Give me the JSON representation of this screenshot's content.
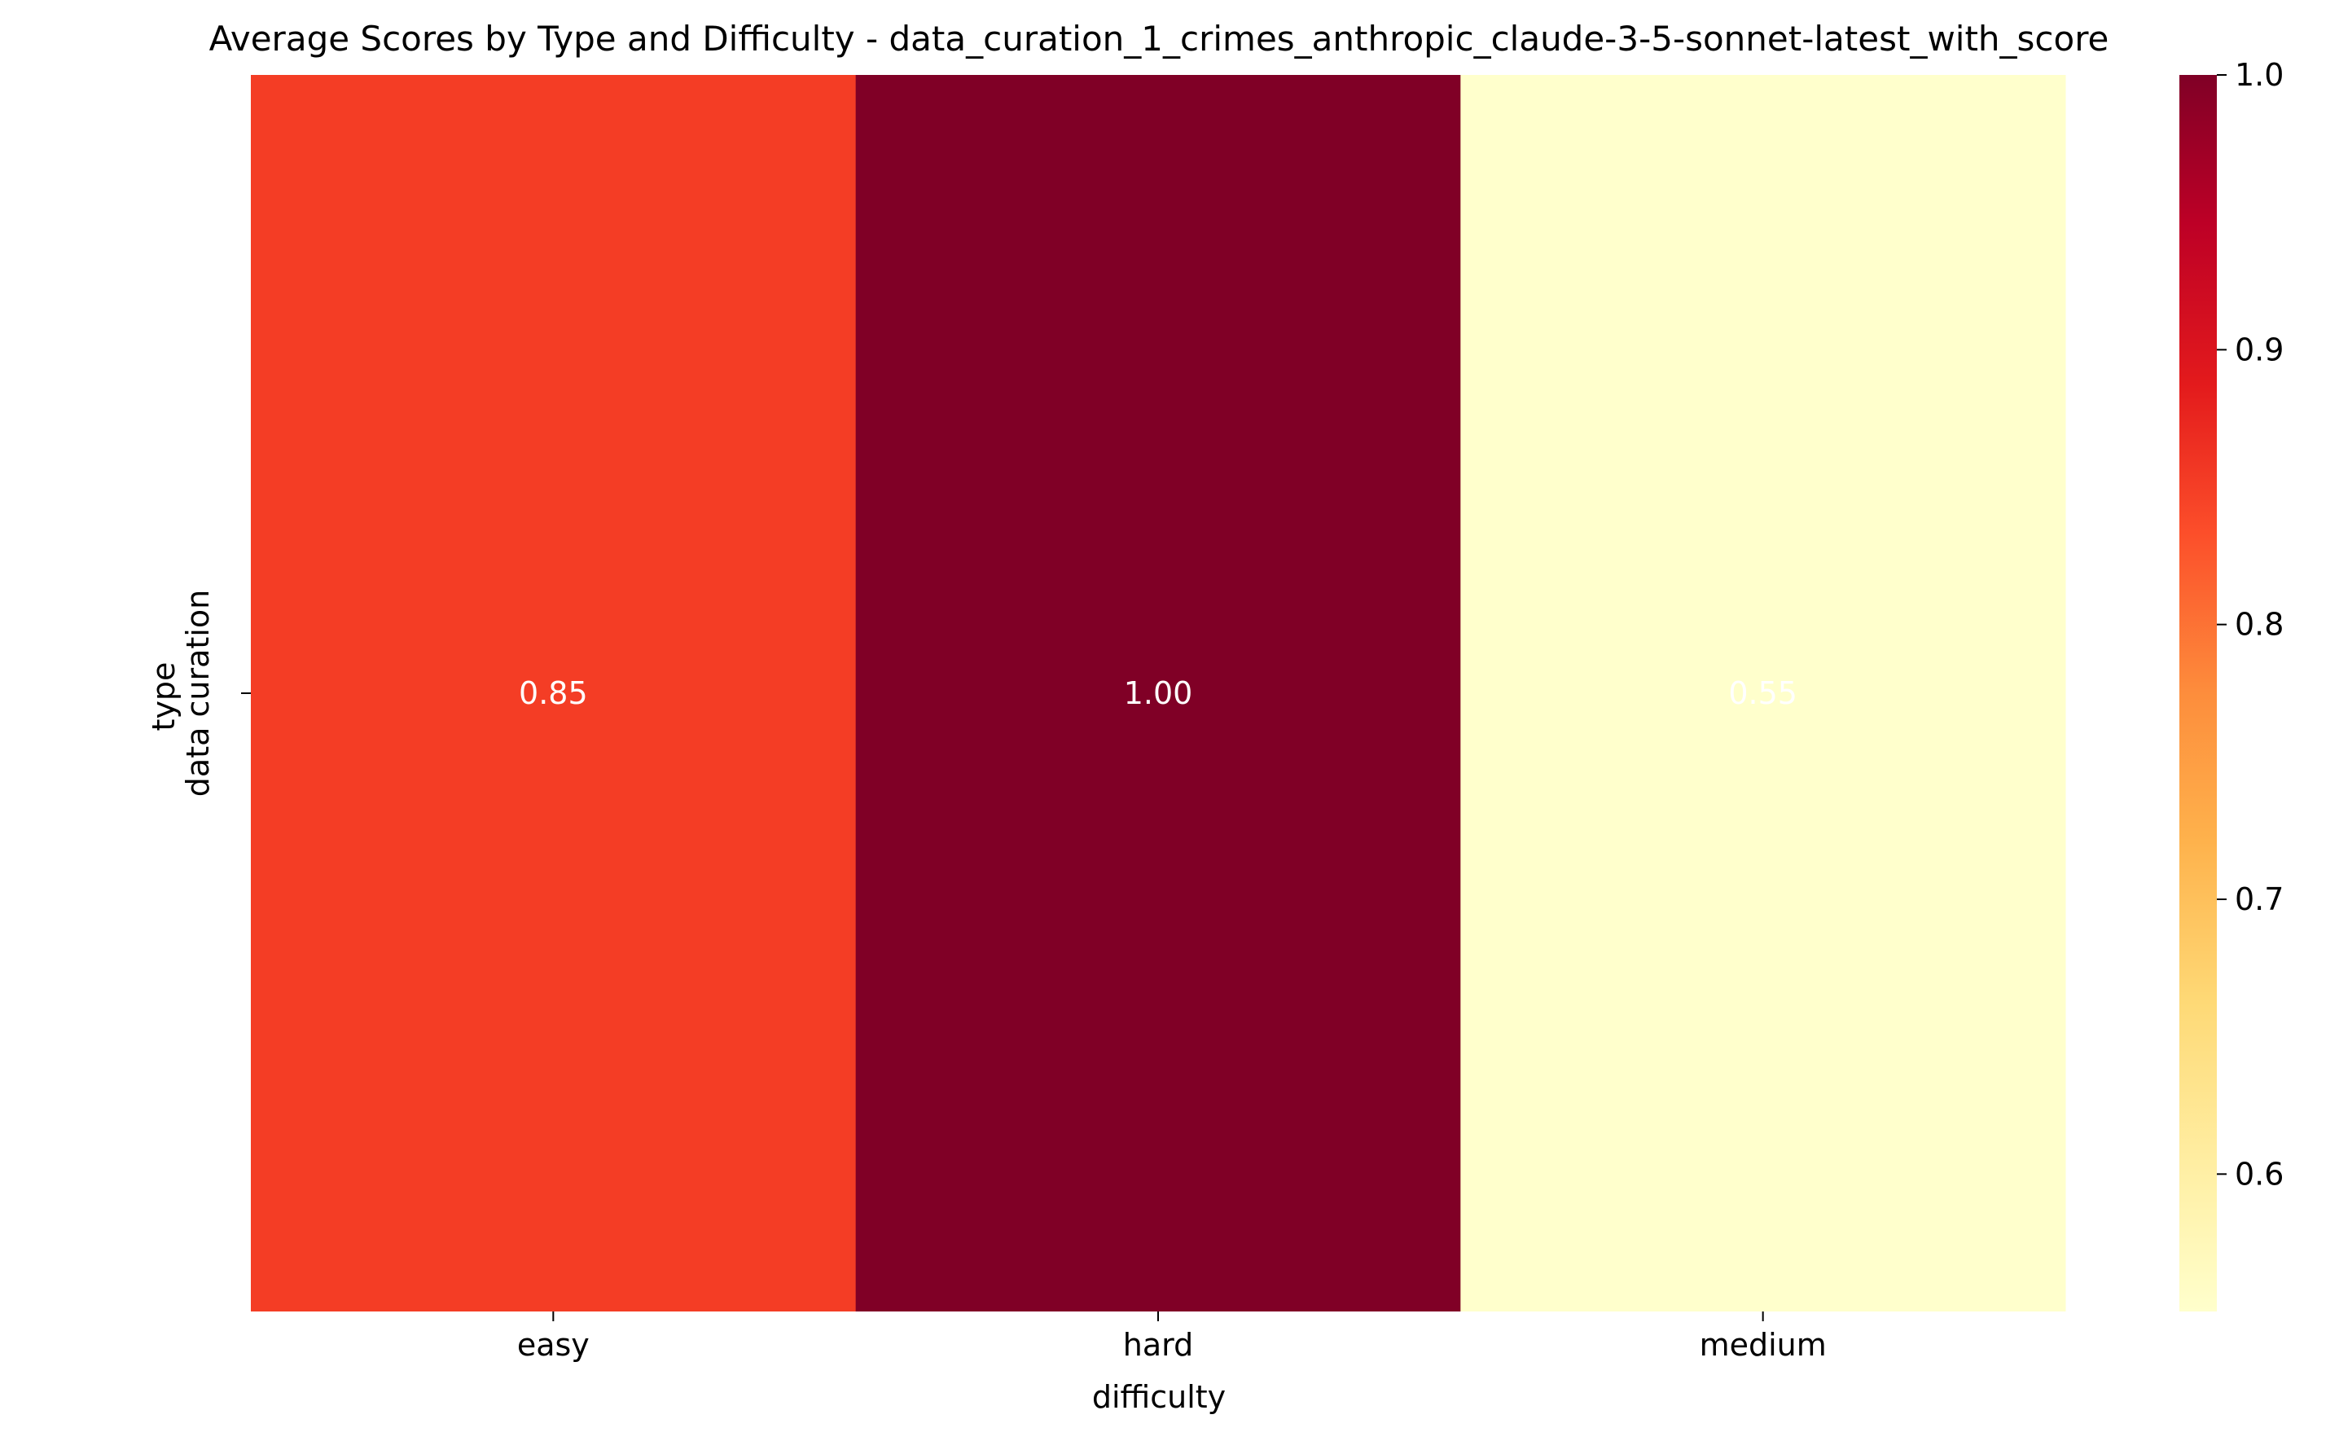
{
  "chart_data": {
    "type": "heatmap",
    "title": "Average Scores by Type and Difficulty - data_curation_1_crimes_anthropic_claude-3-5-sonnet-latest_with_score",
    "xlabel": "difficulty",
    "ylabel": "type",
    "x_categories": [
      "easy",
      "hard",
      "medium"
    ],
    "y_categories": [
      "data curation"
    ],
    "values": [
      [
        0.85,
        1.0,
        0.55
      ]
    ],
    "value_labels": [
      [
        "0.85",
        "1.00",
        "0.55"
      ]
    ],
    "colormap": "YlOrRd",
    "color_range": [
      0.55,
      1.0
    ],
    "colorbar": {
      "ticks": [
        0.6,
        0.7,
        0.8,
        0.9,
        1.0
      ],
      "tick_labels": [
        "0.6",
        "0.7",
        "0.8",
        "0.9",
        "1.0"
      ]
    }
  }
}
